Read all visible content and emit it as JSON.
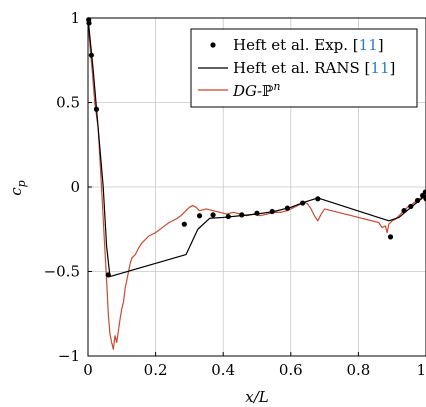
{
  "chart_data": {
    "type": "line",
    "title": "",
    "xlabel": "x/L",
    "ylabel": "c_p",
    "xlim": [
      0,
      1
    ],
    "ylim": [
      -1,
      1
    ],
    "x_ticks": [
      "0",
      "0.2",
      "0.4",
      "0.6",
      "0.8",
      "1"
    ],
    "y_ticks": [
      "1",
      "0.5",
      "0",
      "−0.5",
      "−1"
    ],
    "grid": true,
    "legend_position": "top-right",
    "series": [
      {
        "name": "Heft et al. Exp. [11]",
        "kind": "scatter",
        "color": "#000000",
        "points": [
          [
            0.002,
            0.99
          ],
          [
            0.003,
            0.97
          ],
          [
            0.01,
            0.78
          ],
          [
            0.025,
            0.46
          ],
          [
            0.06,
            -0.52
          ],
          [
            0.285,
            -0.22
          ],
          [
            0.33,
            -0.17
          ],
          [
            0.37,
            -0.165
          ],
          [
            0.415,
            -0.175
          ],
          [
            0.455,
            -0.165
          ],
          [
            0.5,
            -0.155
          ],
          [
            0.545,
            -0.145
          ],
          [
            0.59,
            -0.125
          ],
          [
            0.635,
            -0.095
          ],
          [
            0.68,
            -0.07
          ],
          [
            0.895,
            -0.295
          ],
          [
            0.935,
            -0.14
          ],
          [
            0.955,
            -0.115
          ],
          [
            0.975,
            -0.08
          ],
          [
            0.99,
            -0.05
          ],
          [
            0.998,
            -0.03
          ],
          [
            1.0,
            -0.07
          ]
        ]
      },
      {
        "name": "Heft et al. RANS [11]",
        "kind": "line",
        "color": "#000000",
        "points": [
          [
            0.0,
            1.0
          ],
          [
            0.005,
            0.9
          ],
          [
            0.015,
            0.7
          ],
          [
            0.03,
            0.35
          ],
          [
            0.045,
            0.0
          ],
          [
            0.055,
            -0.35
          ],
          [
            0.065,
            -0.53
          ],
          [
            0.29,
            -0.4
          ],
          [
            0.325,
            -0.25
          ],
          [
            0.36,
            -0.185
          ],
          [
            0.4,
            -0.18
          ],
          [
            0.45,
            -0.17
          ],
          [
            0.5,
            -0.16
          ],
          [
            0.55,
            -0.145
          ],
          [
            0.6,
            -0.12
          ],
          [
            0.64,
            -0.09
          ],
          [
            0.68,
            -0.065
          ],
          [
            0.89,
            -0.2
          ],
          [
            0.92,
            -0.18
          ],
          [
            0.95,
            -0.13
          ],
          [
            0.98,
            -0.08
          ],
          [
            1.0,
            -0.05
          ]
        ]
      },
      {
        "name": "DG-ℙⁿ",
        "kind": "line",
        "color": "#c84b32",
        "points": [
          [
            0.0,
            0.99
          ],
          [
            0.005,
            0.85
          ],
          [
            0.012,
            0.7
          ],
          [
            0.02,
            0.5
          ],
          [
            0.03,
            0.35
          ],
          [
            0.04,
            0.0
          ],
          [
            0.048,
            -0.3
          ],
          [
            0.055,
            -0.55
          ],
          [
            0.06,
            -0.75
          ],
          [
            0.065,
            -0.87
          ],
          [
            0.07,
            -0.92
          ],
          [
            0.075,
            -0.96
          ],
          [
            0.08,
            -0.88
          ],
          [
            0.085,
            -0.92
          ],
          [
            0.09,
            -0.85
          ],
          [
            0.095,
            -0.78
          ],
          [
            0.1,
            -0.72
          ],
          [
            0.105,
            -0.68
          ],
          [
            0.11,
            -0.6
          ],
          [
            0.115,
            -0.55
          ],
          [
            0.12,
            -0.5
          ],
          [
            0.125,
            -0.45
          ],
          [
            0.13,
            -0.42
          ],
          [
            0.14,
            -0.4
          ],
          [
            0.15,
            -0.36
          ],
          [
            0.16,
            -0.33
          ],
          [
            0.17,
            -0.31
          ],
          [
            0.18,
            -0.29
          ],
          [
            0.2,
            -0.27
          ],
          [
            0.22,
            -0.24
          ],
          [
            0.24,
            -0.21
          ],
          [
            0.26,
            -0.19
          ],
          [
            0.275,
            -0.17
          ],
          [
            0.29,
            -0.14
          ],
          [
            0.3,
            -0.12
          ],
          [
            0.31,
            -0.11
          ],
          [
            0.32,
            -0.12
          ],
          [
            0.33,
            -0.14
          ],
          [
            0.35,
            -0.13
          ],
          [
            0.37,
            -0.14
          ],
          [
            0.39,
            -0.15
          ],
          [
            0.41,
            -0.16
          ],
          [
            0.43,
            -0.15
          ],
          [
            0.45,
            -0.16
          ],
          [
            0.47,
            -0.17
          ],
          [
            0.49,
            -0.16
          ],
          [
            0.51,
            -0.17
          ],
          [
            0.53,
            -0.16
          ],
          [
            0.55,
            -0.15
          ],
          [
            0.57,
            -0.15
          ],
          [
            0.59,
            -0.14
          ],
          [
            0.6,
            -0.13
          ],
          [
            0.61,
            -0.12
          ],
          [
            0.62,
            -0.11
          ],
          [
            0.63,
            -0.1
          ],
          [
            0.64,
            -0.09
          ],
          [
            0.65,
            -0.1
          ],
          [
            0.66,
            -0.13
          ],
          [
            0.67,
            -0.17
          ],
          [
            0.68,
            -0.2
          ],
          [
            0.69,
            -0.16
          ],
          [
            0.7,
            -0.13
          ],
          [
            0.72,
            -0.14
          ],
          [
            0.74,
            -0.15
          ],
          [
            0.76,
            -0.16
          ],
          [
            0.78,
            -0.17
          ],
          [
            0.8,
            -0.18
          ],
          [
            0.82,
            -0.19
          ],
          [
            0.84,
            -0.2
          ],
          [
            0.86,
            -0.21
          ],
          [
            0.87,
            -0.24
          ],
          [
            0.88,
            -0.23
          ],
          [
            0.885,
            -0.27
          ],
          [
            0.89,
            -0.22
          ],
          [
            0.9,
            -0.2
          ],
          [
            0.91,
            -0.19
          ],
          [
            0.92,
            -0.17
          ],
          [
            0.93,
            -0.15
          ],
          [
            0.94,
            -0.13
          ],
          [
            0.95,
            -0.11
          ],
          [
            0.96,
            -0.1
          ],
          [
            0.97,
            -0.085
          ],
          [
            0.98,
            -0.07
          ],
          [
            0.99,
            -0.06
          ],
          [
            1.0,
            -0.05
          ]
        ]
      }
    ]
  }
}
